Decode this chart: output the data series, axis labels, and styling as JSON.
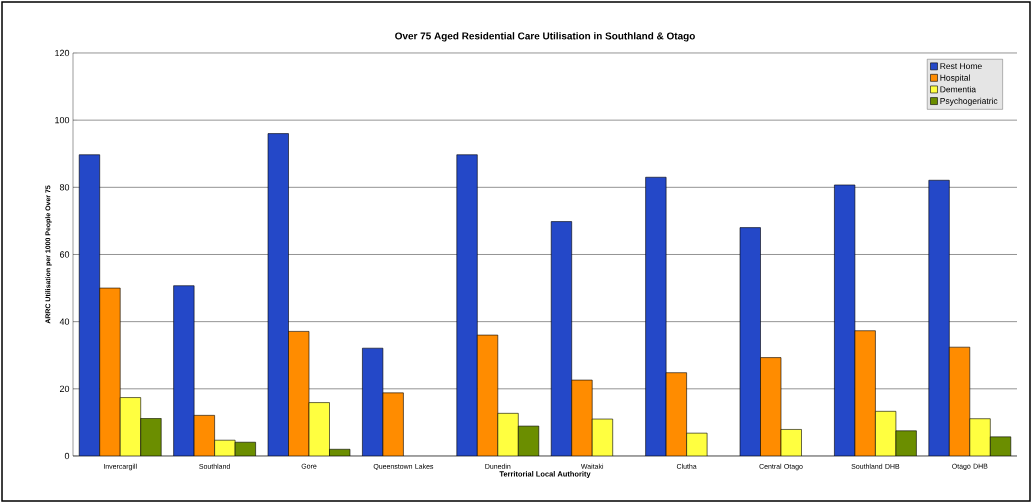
{
  "chart_data": {
    "type": "bar",
    "title": "Over 75 Aged Residential Care Utilisation in Southland & Otago",
    "xlabel": "Territorial Local Authority",
    "ylabel": "ARRC Utilisation per 1000 People Over 75",
    "categories": [
      "Invercargill",
      "Southland",
      "Gore",
      "Queenstown Lakes",
      "Dunedin",
      "Waitaki",
      "Clutha",
      "Central Otago",
      "Southland DHB",
      "Otago DHB"
    ],
    "series": [
      {
        "name": "Rest Home",
        "color": "#2448c8",
        "values": [
          89.7,
          50.7,
          96.0,
          32.1,
          89.7,
          69.8,
          83.0,
          68.0,
          80.7,
          82.1
        ]
      },
      {
        "name": "Hospital",
        "color": "#ff8c00",
        "values": [
          50.0,
          12.1,
          37.1,
          18.8,
          36.0,
          22.6,
          24.8,
          29.3,
          37.3,
          32.4
        ]
      },
      {
        "name": "Dementia",
        "color": "#ffff40",
        "values": [
          17.4,
          4.7,
          15.9,
          null,
          12.7,
          11.0,
          6.8,
          7.9,
          13.3,
          11.1
        ]
      },
      {
        "name": "Psychogeriatric",
        "color": "#6b8e00",
        "values": [
          11.2,
          4.1,
          2.0,
          null,
          8.9,
          null,
          null,
          null,
          7.5,
          5.7
        ]
      }
    ],
    "ylim": [
      0,
      120
    ],
    "yticks": [
      0,
      20,
      40,
      60,
      80,
      100,
      120
    ],
    "grid": "y",
    "legend": "top right"
  }
}
